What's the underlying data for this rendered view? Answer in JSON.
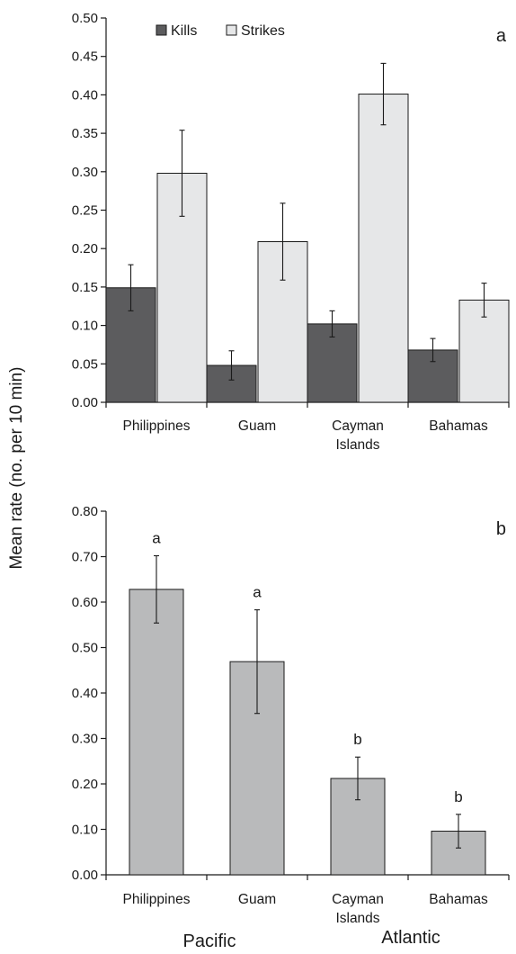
{
  "ylabel": "Mean rate (no. per 10 min)",
  "groups": [
    "Pacific",
    "Atlantic"
  ],
  "colors": {
    "kills": "#5c5c5e",
    "strikes": "#e6e7e8",
    "total": "#b9babb",
    "axis": "#1a1a1a"
  },
  "chart_data": [
    {
      "type": "bar",
      "panel_label": "a",
      "categories": [
        "Philippines",
        "Guam",
        "Cayman Islands",
        "Bahamas"
      ],
      "category_lines": [
        [
          "Philippines"
        ],
        [
          "Guam"
        ],
        [
          "Cayman",
          "Islands"
        ],
        [
          "Bahamas"
        ]
      ],
      "series": [
        {
          "name": "Kills",
          "values": [
            0.149,
            0.048,
            0.102,
            0.068
          ],
          "errors": [
            0.03,
            0.019,
            0.017,
            0.015
          ]
        },
        {
          "name": "Strikes",
          "values": [
            0.298,
            0.209,
            0.401,
            0.133
          ],
          "errors": [
            0.056,
            0.05,
            0.04,
            0.022
          ]
        }
      ],
      "ylim": [
        0,
        0.5
      ],
      "yticks": [
        "0.00",
        "0.05",
        "0.10",
        "0.15",
        "0.20",
        "0.25",
        "0.30",
        "0.35",
        "0.40",
        "0.45",
        "0.50"
      ],
      "legend_position": "top-left"
    },
    {
      "type": "bar",
      "panel_label": "b",
      "categories": [
        "Philippines",
        "Guam",
        "Cayman Islands",
        "Bahamas"
      ],
      "category_lines": [
        [
          "Philippines"
        ],
        [
          "Guam"
        ],
        [
          "Cayman",
          "Islands"
        ],
        [
          "Bahamas"
        ]
      ],
      "series": [
        {
          "values": [
            0.628,
            0.469,
            0.212,
            0.096
          ],
          "errors": [
            0.074,
            0.114,
            0.047,
            0.037
          ]
        }
      ],
      "annotations": [
        "a",
        "a",
        "b",
        "b"
      ],
      "ylim": [
        0,
        0.8
      ],
      "yticks": [
        "0.00",
        "0.10",
        "0.20",
        "0.30",
        "0.40",
        "0.50",
        "0.60",
        "0.70",
        "0.80"
      ]
    }
  ]
}
